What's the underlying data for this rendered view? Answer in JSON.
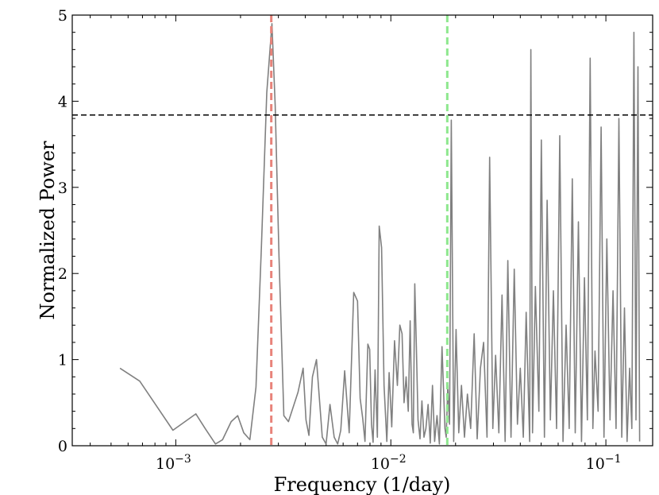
{
  "chart_data": {
    "type": "line",
    "title": "",
    "xlabel": "Frequency (1/day)",
    "ylabel": "Normalized Power",
    "x_scale": "log",
    "xlim": [
      0.00033,
      0.165
    ],
    "ylim": [
      0,
      5
    ],
    "x_ticks": [
      {
        "value": 0.001,
        "base": "10",
        "exp": "−3"
      },
      {
        "value": 0.01,
        "base": "10",
        "exp": "−2"
      },
      {
        "value": 0.1,
        "base": "10",
        "exp": "−1"
      }
    ],
    "y_ticks": [
      "0",
      "1",
      "2",
      "3",
      "4",
      "5"
    ],
    "grid": false,
    "colors": {
      "series": "#808080",
      "threshold": "#000000",
      "peak1": "#e8837a",
      "peak2": "#8ee88e"
    },
    "series": [
      {
        "values_x": [
          0.00055,
          0.00068,
          0.00097,
          0.00124,
          0.00137,
          0.00153,
          0.00165,
          0.00181,
          0.00194,
          0.00207,
          0.00221,
          0.00236,
          0.0025,
          0.00265,
          0.0028,
          0.0029,
          0.00302,
          0.00318,
          0.00334,
          0.0037,
          0.00391,
          0.00403,
          0.00416,
          0.00432,
          0.00451,
          0.0048,
          0.005,
          0.00521,
          0.00545,
          0.00566,
          0.00585,
          0.0061,
          0.0064,
          0.00672,
          0.007,
          0.0072,
          0.0074,
          0.00758,
          0.00782,
          0.00797,
          0.00813,
          0.00827,
          0.00845,
          0.00866,
          0.00883,
          0.00906,
          0.0093,
          0.00958,
          0.00982,
          0.0101,
          0.0104,
          0.01073,
          0.01101,
          0.01128,
          0.01152,
          0.01178,
          0.01205,
          0.0123,
          0.01255,
          0.01272,
          0.01292,
          0.01314,
          0.01338,
          0.01367,
          0.01395,
          0.01426,
          0.01456,
          0.0149,
          0.01525,
          0.01562,
          0.01598,
          0.0164,
          0.01682,
          0.0173,
          0.01785,
          0.0181,
          0.0184,
          0.01875,
          0.0191,
          0.0196,
          0.0201,
          0.0207,
          0.0213,
          0.022,
          0.0227,
          0.0235,
          0.0244,
          0.0252,
          0.0261,
          0.027,
          0.028,
          0.0288,
          0.0298,
          0.0307,
          0.0318,
          0.0329,
          0.034,
          0.035,
          0.0362,
          0.0375,
          0.0388,
          0.04,
          0.0413,
          0.0426,
          0.0442,
          0.0448,
          0.0456,
          0.047,
          0.0488,
          0.0501,
          0.0518,
          0.0533,
          0.0552,
          0.057,
          0.059,
          0.061,
          0.0632,
          0.0653,
          0.0675,
          0.0698,
          0.072,
          0.0745,
          0.077,
          0.0795,
          0.082,
          0.0845,
          0.087,
          0.089,
          0.092,
          0.095,
          0.098,
          0.101,
          0.1045,
          0.108,
          0.1115,
          0.115,
          0.1185,
          0.122,
          0.1255,
          0.129,
          0.132,
          0.135,
          0.138,
          0.141,
          0.1435
        ],
        "values_y": [
          0.9,
          0.75,
          0.18,
          0.37,
          0.2,
          0.02,
          0.07,
          0.28,
          0.35,
          0.15,
          0.07,
          0.68,
          2.3,
          4.1,
          4.9,
          3.95,
          2.2,
          0.35,
          0.28,
          0.62,
          0.9,
          0.3,
          0.12,
          0.8,
          1.0,
          0.1,
          0.02,
          0.48,
          0.1,
          0.02,
          0.18,
          0.87,
          0.15,
          1.78,
          1.68,
          0.55,
          0.32,
          0.05,
          1.18,
          1.12,
          0.25,
          0.04,
          0.88,
          0.1,
          2.55,
          2.3,
          0.7,
          0.05,
          0.85,
          0.22,
          1.22,
          0.7,
          1.4,
          1.3,
          0.5,
          0.8,
          0.4,
          1.45,
          0.25,
          0.15,
          1.88,
          1.15,
          0.3,
          0.08,
          0.52,
          0.1,
          0.2,
          0.48,
          0.03,
          0.7,
          0.05,
          0.35,
          0.02,
          1.15,
          0.2,
          0.1,
          0.7,
          0.25,
          3.78,
          0.05,
          1.35,
          0.15,
          0.7,
          0.1,
          0.6,
          0.2,
          1.3,
          0.08,
          0.9,
          1.2,
          0.1,
          3.35,
          0.2,
          1.05,
          0.15,
          1.75,
          0.05,
          2.15,
          0.1,
          2.05,
          0.25,
          0.9,
          0.1,
          1.55,
          0.05,
          4.6,
          0.15,
          1.85,
          0.4,
          3.55,
          0.1,
          2.85,
          0.3,
          1.8,
          0.2,
          3.6,
          0.05,
          1.4,
          0.2,
          3.1,
          0.15,
          2.6,
          0.05,
          1.95,
          0.3,
          4.5,
          0.2,
          1.1,
          0.4,
          3.7,
          0.1,
          2.4,
          0.3,
          1.8,
          0.2,
          3.8,
          0.1,
          1.6,
          0.05,
          0.9,
          0.2,
          4.8,
          0.3,
          4.4,
          0.05
        ]
      }
    ],
    "reference_lines": {
      "threshold_y": 3.84,
      "peak1_x": 0.00278,
      "peak2_x": 0.0183
    }
  }
}
